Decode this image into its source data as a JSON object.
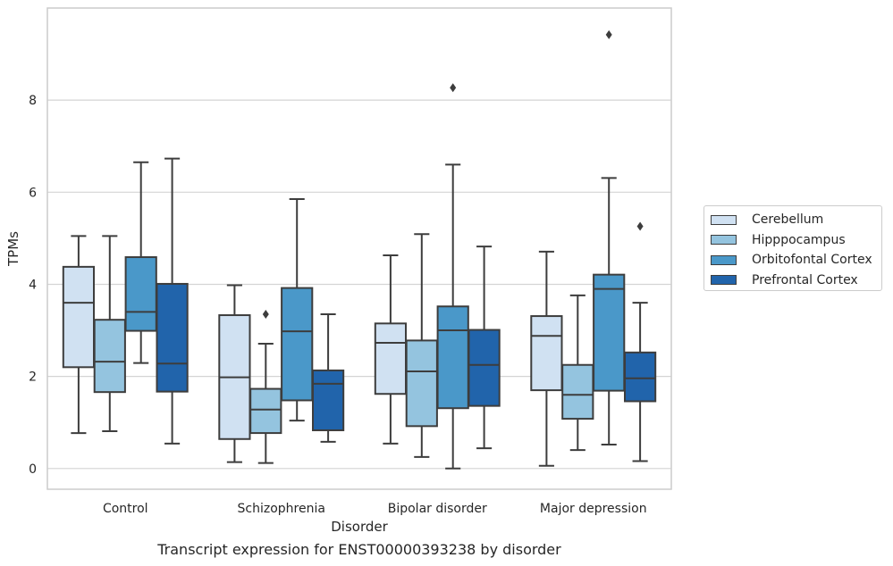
{
  "caption": "Transcript expression for ENST00000393238 by disorder",
  "chart_data": {
    "type": "box",
    "xlabel": "Disorder",
    "ylabel": "TPMs",
    "ylim": [
      -0.45,
      10.0
    ],
    "yticks": [
      0,
      2,
      4,
      6,
      8
    ],
    "grid": "horizontal",
    "legend_position": "right",
    "categories": [
      "Control",
      "Schizophrenia",
      "Bipolar disorder",
      "Major depression"
    ],
    "series": [
      {
        "name": "Cerebellum",
        "color": "#d0e1f2",
        "boxes": [
          {
            "whisker_low": 0.77,
            "q1": 2.2,
            "median": 3.6,
            "q3": 4.38,
            "whisker_high": 5.05,
            "outliers": []
          },
          {
            "whisker_low": 0.14,
            "q1": 0.64,
            "median": 1.98,
            "q3": 3.33,
            "whisker_high": 3.98,
            "outliers": []
          },
          {
            "whisker_low": 0.54,
            "q1": 1.62,
            "median": 2.73,
            "q3": 3.15,
            "whisker_high": 4.63,
            "outliers": []
          },
          {
            "whisker_low": 0.06,
            "q1": 1.7,
            "median": 2.88,
            "q3": 3.31,
            "whisker_high": 4.71,
            "outliers": []
          }
        ]
      },
      {
        "name": "Hipppocampus",
        "color": "#94c4df",
        "boxes": [
          {
            "whisker_low": 0.81,
            "q1": 1.66,
            "median": 2.32,
            "q3": 3.23,
            "whisker_high": 5.05,
            "outliers": []
          },
          {
            "whisker_low": 0.12,
            "q1": 0.77,
            "median": 1.28,
            "q3": 1.73,
            "whisker_high": 2.71,
            "outliers": [
              3.35
            ]
          },
          {
            "whisker_low": 0.25,
            "q1": 0.92,
            "median": 2.11,
            "q3": 2.78,
            "whisker_high": 5.09,
            "outliers": []
          },
          {
            "whisker_low": 0.4,
            "q1": 1.08,
            "median": 1.6,
            "q3": 2.25,
            "whisker_high": 3.76,
            "outliers": []
          }
        ]
      },
      {
        "name": "Orbitofontal Cortex",
        "color": "#4a98c9",
        "boxes": [
          {
            "whisker_low": 2.29,
            "q1": 2.99,
            "median": 3.4,
            "q3": 4.59,
            "whisker_high": 6.65,
            "outliers": []
          },
          {
            "whisker_low": 1.04,
            "q1": 1.48,
            "median": 2.98,
            "q3": 3.92,
            "whisker_high": 5.85,
            "outliers": []
          },
          {
            "whisker_low": 0.0,
            "q1": 1.31,
            "median": 3.0,
            "q3": 3.52,
            "whisker_high": 6.6,
            "outliers": [
              8.27
            ]
          },
          {
            "whisker_low": 0.52,
            "q1": 1.69,
            "median": 3.9,
            "q3": 4.21,
            "whisker_high": 6.31,
            "outliers": [
              9.42
            ]
          }
        ]
      },
      {
        "name": "Prefrontal Cortex",
        "color": "#2164ab",
        "boxes": [
          {
            "whisker_low": 0.54,
            "q1": 1.67,
            "median": 2.28,
            "q3": 4.01,
            "whisker_high": 6.73,
            "outliers": []
          },
          {
            "whisker_low": 0.58,
            "q1": 0.83,
            "median": 1.84,
            "q3": 2.13,
            "whisker_high": 3.35,
            "outliers": []
          },
          {
            "whisker_low": 0.44,
            "q1": 1.36,
            "median": 2.25,
            "q3": 3.01,
            "whisker_high": 4.82,
            "outliers": []
          },
          {
            "whisker_low": 0.16,
            "q1": 1.46,
            "median": 1.96,
            "q3": 2.52,
            "whisker_high": 3.6,
            "outliers": [
              5.26
            ]
          }
        ]
      }
    ]
  }
}
